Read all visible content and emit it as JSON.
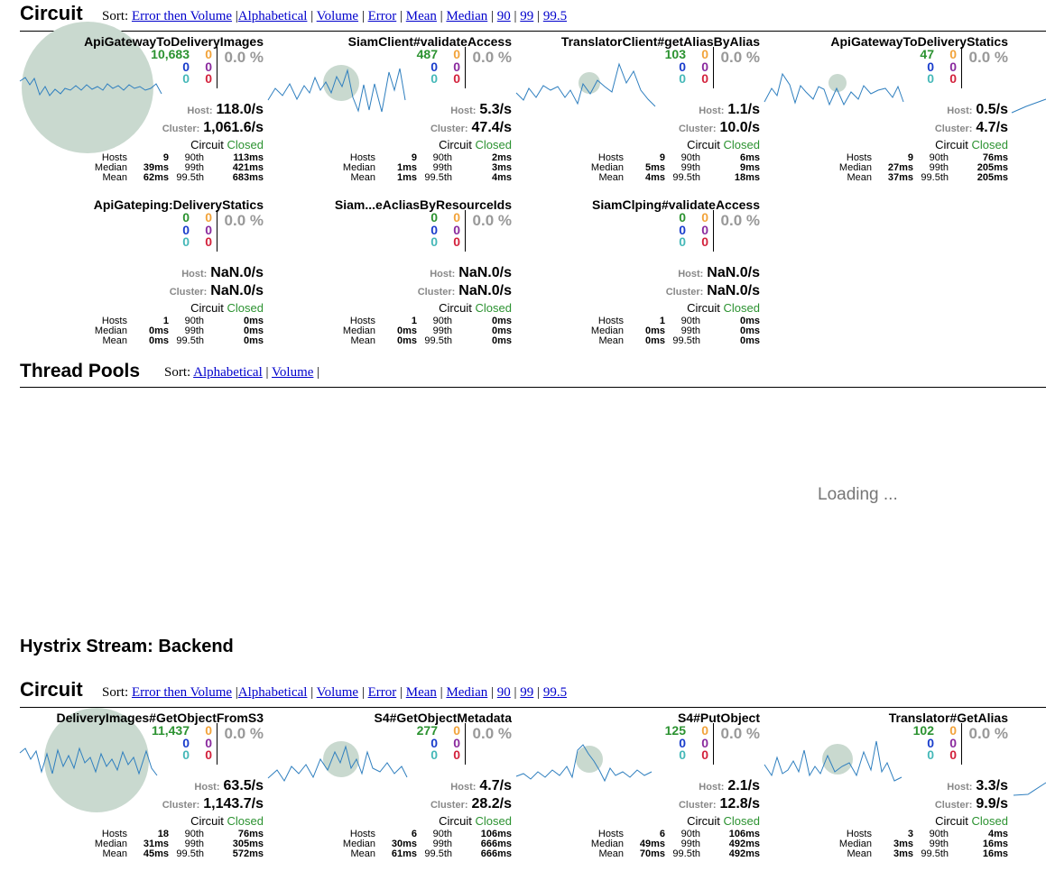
{
  "top": {
    "circuit": {
      "title": "Circuit",
      "sort": {
        "label": "Sort:",
        "error_volume": "Error then Volume",
        "alpha": "Alphabetical",
        "volume": "Volume",
        "error": "Error",
        "mean": "Mean",
        "median": "Median",
        "p90": "90",
        "p99": "99",
        "p995": "99.5"
      },
      "cards": [
        {
          "name": "ApiGatewayToDeliveryImages",
          "success": "10,683",
          "short": "0",
          "timeout": "0",
          "rejected": "0",
          "failure": "0",
          "bad": "0",
          "error_pct": "0.0 %",
          "host_label": "Host:",
          "host_rate": "118.0/s",
          "cluster_label": "Cluster:",
          "cluster_rate": "1,061.6/s",
          "circuit_label": "Circuit",
          "circuit_status": "Closed",
          "hosts_label": "Hosts",
          "hosts": "9",
          "median_label": "Median",
          "median": "39ms",
          "mean_label": "Mean",
          "mean": "62ms",
          "p90_label": "90th",
          "p90": "113ms",
          "p99_label": "99th",
          "p99": "421ms",
          "p995_label": "99.5th",
          "p995": "683ms"
        },
        {
          "name": "SiamClient#validateAccess",
          "success": "487",
          "short": "0",
          "timeout": "0",
          "rejected": "0",
          "failure": "0",
          "bad": "0",
          "error_pct": "0.0 %",
          "host_label": "Host:",
          "host_rate": "5.3/s",
          "cluster_label": "Cluster:",
          "cluster_rate": "47.4/s",
          "circuit_label": "Circuit",
          "circuit_status": "Closed",
          "hosts_label": "Hosts",
          "hosts": "9",
          "median_label": "Median",
          "median": "1ms",
          "mean_label": "Mean",
          "mean": "1ms",
          "p90_label": "90th",
          "p90": "2ms",
          "p99_label": "99th",
          "p99": "3ms",
          "p995_label": "99.5th",
          "p995": "4ms"
        },
        {
          "name": "TranslatorClient#getAliasByAlias",
          "success": "103",
          "short": "0",
          "timeout": "0",
          "rejected": "0",
          "failure": "0",
          "bad": "0",
          "error_pct": "0.0 %",
          "host_label": "Host:",
          "host_rate": "1.1/s",
          "cluster_label": "Cluster:",
          "cluster_rate": "10.0/s",
          "circuit_label": "Circuit",
          "circuit_status": "Closed",
          "hosts_label": "Hosts",
          "hosts": "9",
          "median_label": "Median",
          "median": "5ms",
          "mean_label": "Mean",
          "mean": "4ms",
          "p90_label": "90th",
          "p90": "6ms",
          "p99_label": "99th",
          "p99": "9ms",
          "p995_label": "99.5th",
          "p995": "18ms"
        },
        {
          "name": "ApiGatewayToDeliveryStatics",
          "success": "47",
          "short": "0",
          "timeout": "0",
          "rejected": "0",
          "failure": "0",
          "bad": "0",
          "error_pct": "0.0 %",
          "host_label": "Host:",
          "host_rate": "0.5/s",
          "cluster_label": "Cluster:",
          "cluster_rate": "4.7/s",
          "circuit_label": "Circuit",
          "circuit_status": "Closed",
          "hosts_label": "Hosts",
          "hosts": "9",
          "median_label": "Median",
          "median": "27ms",
          "mean_label": "Mean",
          "mean": "37ms",
          "p90_label": "90th",
          "p90": "76ms",
          "p99_label": "99th",
          "p99": "205ms",
          "p995_label": "99.5th",
          "p995": "205ms"
        },
        {
          "name": "ApiGateping:DeliveryStatics",
          "success": "0",
          "short": "0",
          "timeout": "0",
          "rejected": "0",
          "failure": "0",
          "bad": "0",
          "error_pct": "0.0 %",
          "host_label": "Host:",
          "host_rate": "NaN.0/s",
          "cluster_label": "Cluster:",
          "cluster_rate": "NaN.0/s",
          "circuit_label": "Circuit",
          "circuit_status": "Closed",
          "hosts_label": "Hosts",
          "hosts": "1",
          "median_label": "Median",
          "median": "0ms",
          "mean_label": "Mean",
          "mean": "0ms",
          "p90_label": "90th",
          "p90": "0ms",
          "p99_label": "99th",
          "p99": "0ms",
          "p995_label": "99.5th",
          "p995": "0ms"
        },
        {
          "name": "Siam...eAcliasByResourceIds",
          "success": "0",
          "short": "0",
          "timeout": "0",
          "rejected": "0",
          "failure": "0",
          "bad": "0",
          "error_pct": "0.0 %",
          "host_label": "Host:",
          "host_rate": "NaN.0/s",
          "cluster_label": "Cluster:",
          "cluster_rate": "NaN.0/s",
          "circuit_label": "Circuit",
          "circuit_status": "Closed",
          "hosts_label": "Hosts",
          "hosts": "1",
          "median_label": "Median",
          "median": "0ms",
          "mean_label": "Mean",
          "mean": "0ms",
          "p90_label": "90th",
          "p90": "0ms",
          "p99_label": "99th",
          "p99": "0ms",
          "p995_label": "99.5th",
          "p995": "0ms"
        },
        {
          "name": "SiamClping#validateAccess",
          "success": "0",
          "short": "0",
          "timeout": "0",
          "rejected": "0",
          "failure": "0",
          "bad": "0",
          "error_pct": "0.0 %",
          "host_label": "Host:",
          "host_rate": "NaN.0/s",
          "cluster_label": "Cluster:",
          "cluster_rate": "NaN.0/s",
          "circuit_label": "Circuit",
          "circuit_status": "Closed",
          "hosts_label": "Hosts",
          "hosts": "1",
          "median_label": "Median",
          "median": "0ms",
          "mean_label": "Mean",
          "mean": "0ms",
          "p90_label": "90th",
          "p90": "0ms",
          "p99_label": "99th",
          "p99": "0ms",
          "p995_label": "99.5th",
          "p995": "0ms"
        }
      ]
    },
    "thread_pools": {
      "title": "Thread Pools",
      "sort": {
        "label": "Sort:",
        "alpha": "Alphabetical",
        "volume": "Volume",
        "trail": "|"
      },
      "loading": "Loading ..."
    }
  },
  "stream": {
    "title": "Hystrix Stream: Backend"
  },
  "bottom": {
    "circuit": {
      "title": "Circuit",
      "sort": {
        "label": "Sort:",
        "error_volume": "Error then Volume",
        "alpha": "Alphabetical",
        "volume": "Volume",
        "error": "Error",
        "mean": "Mean",
        "median": "Median",
        "p90": "90",
        "p99": "99",
        "p995": "99.5"
      },
      "cards": [
        {
          "name": "DeliveryImages#GetObjectFromS3",
          "success": "11,437",
          "short": "0",
          "timeout": "0",
          "rejected": "0",
          "failure": "0",
          "bad": "0",
          "error_pct": "0.0 %",
          "host_label": "Host:",
          "host_rate": "63.5/s",
          "cluster_label": "Cluster:",
          "cluster_rate": "1,143.7/s",
          "circuit_label": "Circuit",
          "circuit_status": "Closed",
          "hosts_label": "Hosts",
          "hosts": "18",
          "median_label": "Median",
          "median": "31ms",
          "mean_label": "Mean",
          "mean": "45ms",
          "p90_label": "90th",
          "p90": "76ms",
          "p99_label": "99th",
          "p99": "305ms",
          "p995_label": "99.5th",
          "p995": "572ms"
        },
        {
          "name": "S4#GetObjectMetadata",
          "success": "277",
          "short": "0",
          "timeout": "0",
          "rejected": "0",
          "failure": "0",
          "bad": "0",
          "error_pct": "0.0 %",
          "host_label": "Host:",
          "host_rate": "4.7/s",
          "cluster_label": "Cluster:",
          "cluster_rate": "28.2/s",
          "circuit_label": "Circuit",
          "circuit_status": "Closed",
          "hosts_label": "Hosts",
          "hosts": "6",
          "median_label": "Median",
          "median": "30ms",
          "mean_label": "Mean",
          "mean": "61ms",
          "p90_label": "90th",
          "p90": "106ms",
          "p99_label": "99th",
          "p99": "666ms",
          "p995_label": "99.5th",
          "p995": "666ms"
        },
        {
          "name": "S4#PutObject",
          "success": "125",
          "short": "0",
          "timeout": "0",
          "rejected": "0",
          "failure": "0",
          "bad": "0",
          "error_pct": "0.0 %",
          "host_label": "Host:",
          "host_rate": "2.1/s",
          "cluster_label": "Cluster:",
          "cluster_rate": "12.8/s",
          "circuit_label": "Circuit",
          "circuit_status": "Closed",
          "hosts_label": "Hosts",
          "hosts": "6",
          "median_label": "Median",
          "median": "49ms",
          "mean_label": "Mean",
          "mean": "70ms",
          "p90_label": "90th",
          "p90": "106ms",
          "p99_label": "99th",
          "p99": "492ms",
          "p995_label": "99.5th",
          "p995": "492ms"
        },
        {
          "name": "Translator#GetAlias",
          "success": "102",
          "short": "0",
          "timeout": "0",
          "rejected": "0",
          "failure": "0",
          "bad": "0",
          "error_pct": "0.0 %",
          "host_label": "Host:",
          "host_rate": "3.3/s",
          "cluster_label": "Cluster:",
          "cluster_rate": "9.9/s",
          "circuit_label": "Circuit",
          "circuit_status": "Closed",
          "hosts_label": "Hosts",
          "hosts": "3",
          "median_label": "Median",
          "median": "3ms",
          "mean_label": "Mean",
          "mean": "3ms",
          "p90_label": "90th",
          "p90": "4ms",
          "p99_label": "99th",
          "p99": "16ms",
          "p995_label": "99.5th",
          "p995": "16ms"
        }
      ]
    }
  },
  "colors": {
    "circle": "#c9d9cf",
    "spark": "#2f7fbf",
    "success": "#2b9230",
    "link": "#0000cc"
  }
}
